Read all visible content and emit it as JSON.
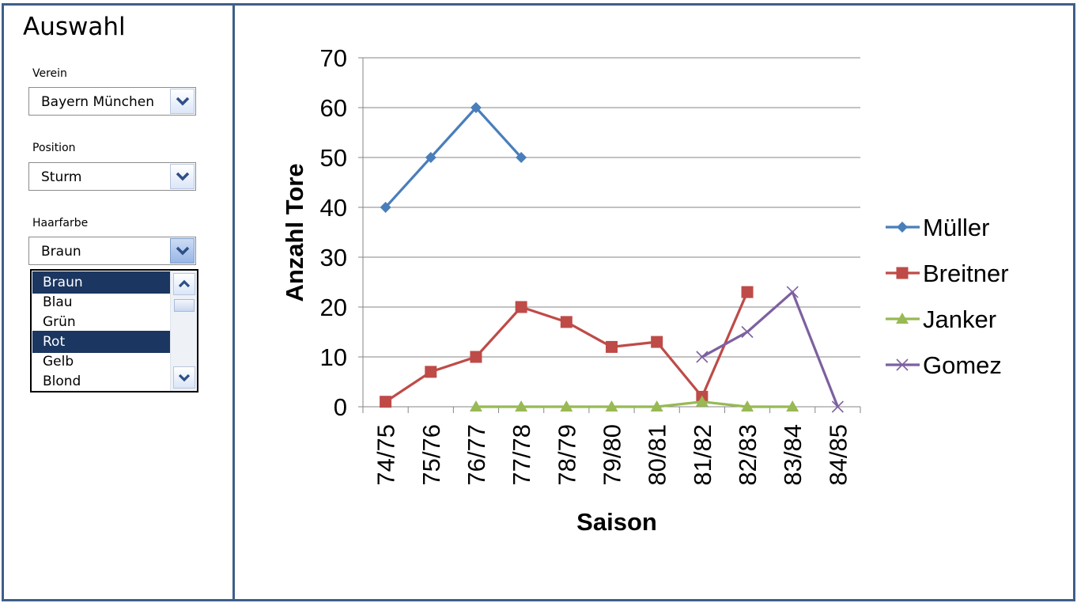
{
  "panel": {
    "title": "Auswahl",
    "verein": {
      "label": "Verein",
      "value": "Bayern München"
    },
    "position": {
      "label": "Position",
      "value": "Sturm"
    },
    "haarfarbe": {
      "label": "Haarfarbe",
      "value": "Braun",
      "options": [
        {
          "label": "Braun",
          "selected": true
        },
        {
          "label": "Blau",
          "selected": false
        },
        {
          "label": "Grün",
          "selected": false
        },
        {
          "label": "Rot",
          "selected": true
        },
        {
          "label": "Gelb",
          "selected": false
        },
        {
          "label": "Blond",
          "selected": false
        }
      ]
    }
  },
  "chart_data": {
    "type": "line",
    "title": "",
    "xlabel": "Saison",
    "ylabel": "Anzahl Tore",
    "categories": [
      "74/75",
      "75/76",
      "76/77",
      "77/78",
      "78/79",
      "79/80",
      "80/81",
      "81/82",
      "82/83",
      "83/84",
      "84/85"
    ],
    "ylim": [
      0,
      70
    ],
    "yticks": [
      0,
      10,
      20,
      30,
      40,
      50,
      60,
      70
    ],
    "grid": true,
    "legend_position": "right",
    "series": [
      {
        "name": "Müller",
        "color": "#4a7ebb",
        "marker": "diamond",
        "values": [
          40,
          50,
          60,
          50,
          null,
          null,
          null,
          null,
          null,
          null,
          null
        ]
      },
      {
        "name": "Breitner",
        "color": "#be4b48",
        "marker": "square",
        "values": [
          1,
          7,
          10,
          20,
          17,
          12,
          13,
          2,
          23,
          null,
          null
        ]
      },
      {
        "name": "Janker",
        "color": "#98b954",
        "marker": "triangle",
        "values": [
          null,
          null,
          0,
          0,
          0,
          0,
          0,
          1,
          0,
          0,
          null
        ]
      },
      {
        "name": "Gomez",
        "color": "#7d60a0",
        "marker": "x",
        "values": [
          null,
          null,
          null,
          null,
          null,
          null,
          null,
          10,
          15,
          23,
          0
        ]
      }
    ]
  }
}
